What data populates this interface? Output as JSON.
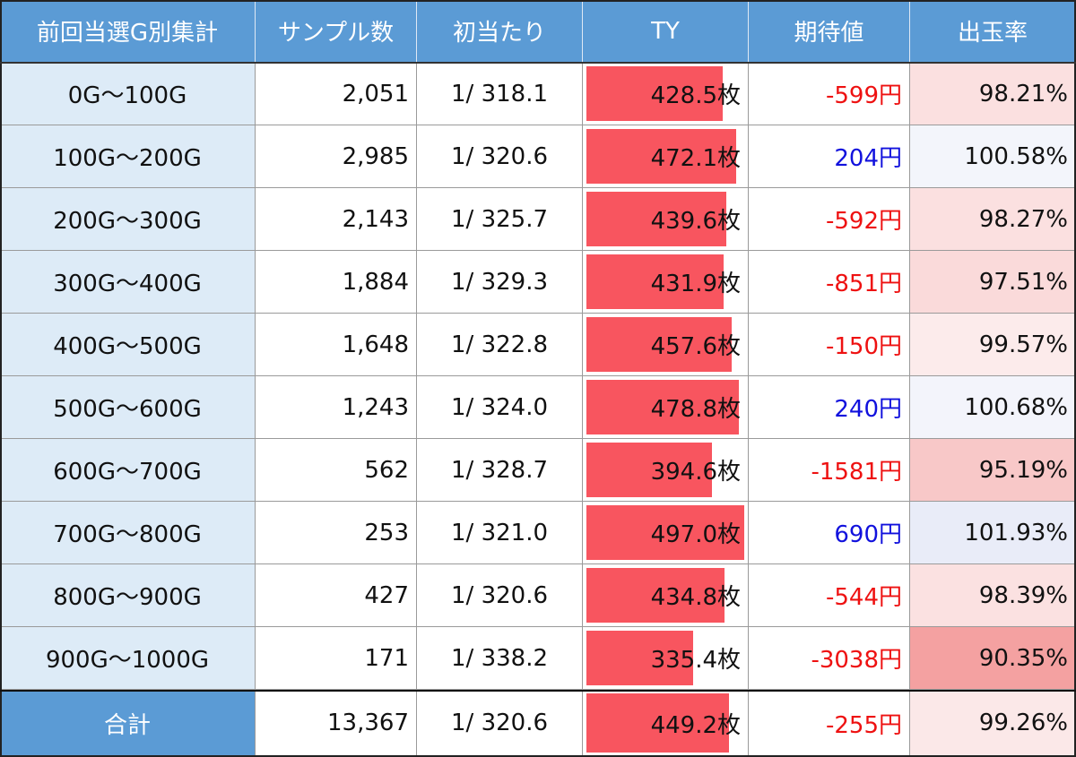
{
  "table": {
    "header": [
      "前回当選G別集計",
      "サンプル数",
      "初当たり",
      "TY",
      "期待値",
      "出玉率"
    ],
    "rows": [
      [
        "0G～100G",
        "2,051",
        "1/ 318.1",
        "428.5枚",
        "-599円",
        "98.21%"
      ],
      [
        "100G～200G",
        "2,985",
        "1/ 320.6",
        "472.1枚",
        "204円",
        "100.58%"
      ],
      [
        "200G～300G",
        "2,143",
        "1/ 325.7",
        "439.6枚",
        "-592円",
        "98.27%"
      ],
      [
        "300G～400G",
        "1,884",
        "1/ 329.3",
        "431.9枚",
        "-851円",
        "97.51%"
      ],
      [
        "400G～500G",
        "1,648",
        "1/ 322.8",
        "457.6枚",
        "-150円",
        "99.57%"
      ],
      [
        "500G～600G",
        "1,243",
        "1/ 324.0",
        "478.8枚",
        "240円",
        "100.68%"
      ],
      [
        "600G～700G",
        "562",
        "1/ 328.7",
        "394.6枚",
        "-1581円",
        "95.19%"
      ],
      [
        "700G～800G",
        "253",
        "1/ 321.0",
        "497.0枚",
        "690円",
        "101.93%"
      ],
      [
        "800G～900G",
        "427",
        "1/ 320.6",
        "434.8枚",
        "-544円",
        "98.39%"
      ],
      [
        "900G～1000G",
        "171",
        "1/ 338.2",
        "335.4枚",
        "-3038円",
        "90.35%"
      ]
    ],
    "total": [
      "合計",
      "13,367",
      "1/ 320.6",
      "449.2枚",
      "-255円",
      "99.26%"
    ]
  }
}
